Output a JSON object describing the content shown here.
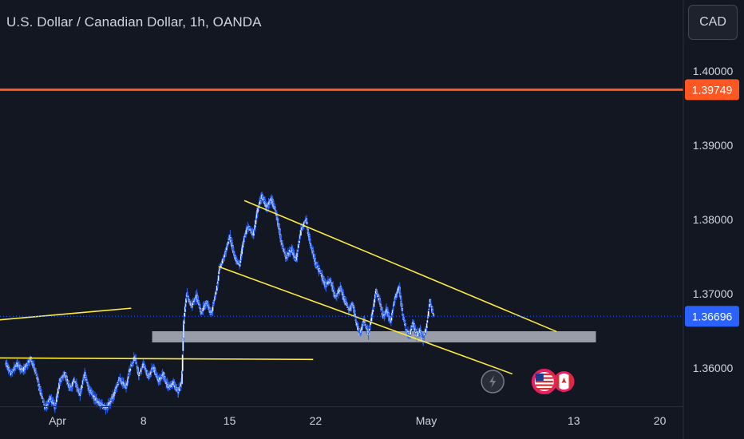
{
  "header": {
    "title": "U.S. Dollar / Canadian Dollar, 1h, OANDA",
    "currency_button": "CAD"
  },
  "chart_data": {
    "type": "candlestick",
    "symbol": "USD/CAD",
    "interval": "1h",
    "source": "OANDA",
    "ylim": [
      1.3555,
      1.4045
    ],
    "y_ticks": [
      "1.40000",
      "1.39000",
      "1.38000",
      "1.37000",
      "1.36000"
    ],
    "x_ticks": [
      {
        "label": "Apr",
        "day": 1
      },
      {
        "label": "8",
        "day": 8
      },
      {
        "label": "15",
        "day": 15
      },
      {
        "label": "22",
        "day": 22
      },
      {
        "label": "May",
        "day": 31
      },
      {
        "label": "13",
        "day": 43
      },
      {
        "label": "20",
        "day": 50
      }
    ],
    "price_path": [
      [
        -3.2,
        1.3607
      ],
      [
        -2.8,
        1.3592
      ],
      [
        -2.3,
        1.3605
      ],
      [
        -1.8,
        1.3597
      ],
      [
        -1.2,
        1.3612
      ],
      [
        -0.9,
        1.3601
      ],
      [
        -0.5,
        1.3575
      ],
      [
        0.0,
        1.3545
      ],
      [
        0.4,
        1.356
      ],
      [
        0.8,
        1.3548
      ],
      [
        1.2,
        1.3583
      ],
      [
        1.6,
        1.3592
      ],
      [
        2.0,
        1.3572
      ],
      [
        2.4,
        1.3585
      ],
      [
        2.8,
        1.3564
      ],
      [
        3.2,
        1.3592
      ],
      [
        3.6,
        1.357
      ],
      [
        4.2,
        1.3555
      ],
      [
        5.0,
        1.3545
      ],
      [
        5.6,
        1.3565
      ],
      [
        6.0,
        1.3585
      ],
      [
        6.6,
        1.3575
      ],
      [
        6.9,
        1.36
      ],
      [
        7.3,
        1.3615
      ],
      [
        7.6,
        1.359
      ],
      [
        8.0,
        1.3606
      ],
      [
        8.4,
        1.3588
      ],
      [
        8.8,
        1.3602
      ],
      [
        9.2,
        1.3582
      ],
      [
        9.6,
        1.3592
      ],
      [
        10.0,
        1.3572
      ],
      [
        10.4,
        1.358
      ],
      [
        10.8,
        1.3568
      ],
      [
        11.1,
        1.358
      ],
      [
        11.25,
        1.366
      ],
      [
        11.5,
        1.37
      ],
      [
        11.9,
        1.3683
      ],
      [
        12.3,
        1.3697
      ],
      [
        12.7,
        1.3673
      ],
      [
        13.1,
        1.369
      ],
      [
        13.5,
        1.3672
      ],
      [
        13.9,
        1.3704
      ],
      [
        14.2,
        1.3735
      ],
      [
        14.6,
        1.3752
      ],
      [
        15.0,
        1.3778
      ],
      [
        15.4,
        1.375
      ],
      [
        15.8,
        1.3738
      ],
      [
        16.1,
        1.377
      ],
      [
        16.5,
        1.3792
      ],
      [
        16.9,
        1.3778
      ],
      [
        17.3,
        1.3815
      ],
      [
        17.6,
        1.3833
      ],
      [
        18.0,
        1.3817
      ],
      [
        18.4,
        1.3828
      ],
      [
        18.8,
        1.3808
      ],
      [
        19.2,
        1.377
      ],
      [
        19.6,
        1.3748
      ],
      [
        20.0,
        1.376
      ],
      [
        20.4,
        1.3745
      ],
      [
        20.8,
        1.3785
      ],
      [
        21.2,
        1.38
      ],
      [
        21.6,
        1.3765
      ],
      [
        22.0,
        1.374
      ],
      [
        22.4,
        1.3728
      ],
      [
        22.8,
        1.3712
      ],
      [
        23.2,
        1.3718
      ],
      [
        23.6,
        1.3695
      ],
      [
        24.0,
        1.3708
      ],
      [
        24.4,
        1.369
      ],
      [
        24.7,
        1.3677
      ],
      [
        25.0,
        1.3688
      ],
      [
        25.3,
        1.366
      ],
      [
        25.6,
        1.3645
      ],
      [
        25.9,
        1.3663
      ],
      [
        26.3,
        1.3647
      ],
      [
        26.6,
        1.3672
      ],
      [
        26.9,
        1.3705
      ],
      [
        27.2,
        1.369
      ],
      [
        27.5,
        1.3668
      ],
      [
        27.8,
        1.368
      ],
      [
        28.1,
        1.366
      ],
      [
        28.4,
        1.3692
      ],
      [
        28.8,
        1.371
      ],
      [
        29.0,
        1.368
      ],
      [
        29.3,
        1.3655
      ],
      [
        29.6,
        1.3643
      ],
      [
        29.9,
        1.3662
      ],
      [
        30.2,
        1.3643
      ],
      [
        30.5,
        1.3652
      ],
      [
        30.7,
        1.3636
      ],
      [
        31.0,
        1.3655
      ],
      [
        31.3,
        1.369
      ],
      [
        31.6,
        1.3669
      ]
    ],
    "horizontal_line": {
      "price": 1.39749,
      "label": "1.39749",
      "color": "#ff5722"
    },
    "last_price": {
      "price": 1.36696,
      "label": "1.36696",
      "color": "#2962ff"
    },
    "support_zone": {
      "from_day": 8.7,
      "to_day": 44.8,
      "top": 1.36495,
      "bottom": 1.36345,
      "color": "#b2b5be"
    },
    "trendlines": [
      {
        "from": [
          16.2,
          1.38255
        ],
        "to": [
          41.6,
          1.3649
        ],
        "color": "#ffeb3b"
      },
      {
        "from": [
          14.1,
          1.37365
        ],
        "to": [
          38.0,
          1.3592
        ],
        "color": "#ffeb3b"
      },
      {
        "from": [
          -3.9,
          1.36645
        ],
        "to": [
          7.0,
          1.36805
        ],
        "color": "#ffeb3b"
      },
      {
        "from": [
          -3.9,
          1.36135
        ],
        "to": [
          21.8,
          1.36115
        ],
        "color": "#ffeb3b"
      }
    ],
    "colors": {
      "background": "#131722",
      "candle": "#2962ff",
      "candle_outline": "#ffffff",
      "text": "#d1d4dc"
    },
    "markers": [
      {
        "name": "lightning-icon",
        "day": 36.4,
        "price": 1.35817
      },
      {
        "name": "us-flag-icon",
        "day": 40.6,
        "price": 1.35817
      },
      {
        "name": "ca-flag-icon",
        "day": 42.2,
        "price": 1.35817
      }
    ]
  }
}
